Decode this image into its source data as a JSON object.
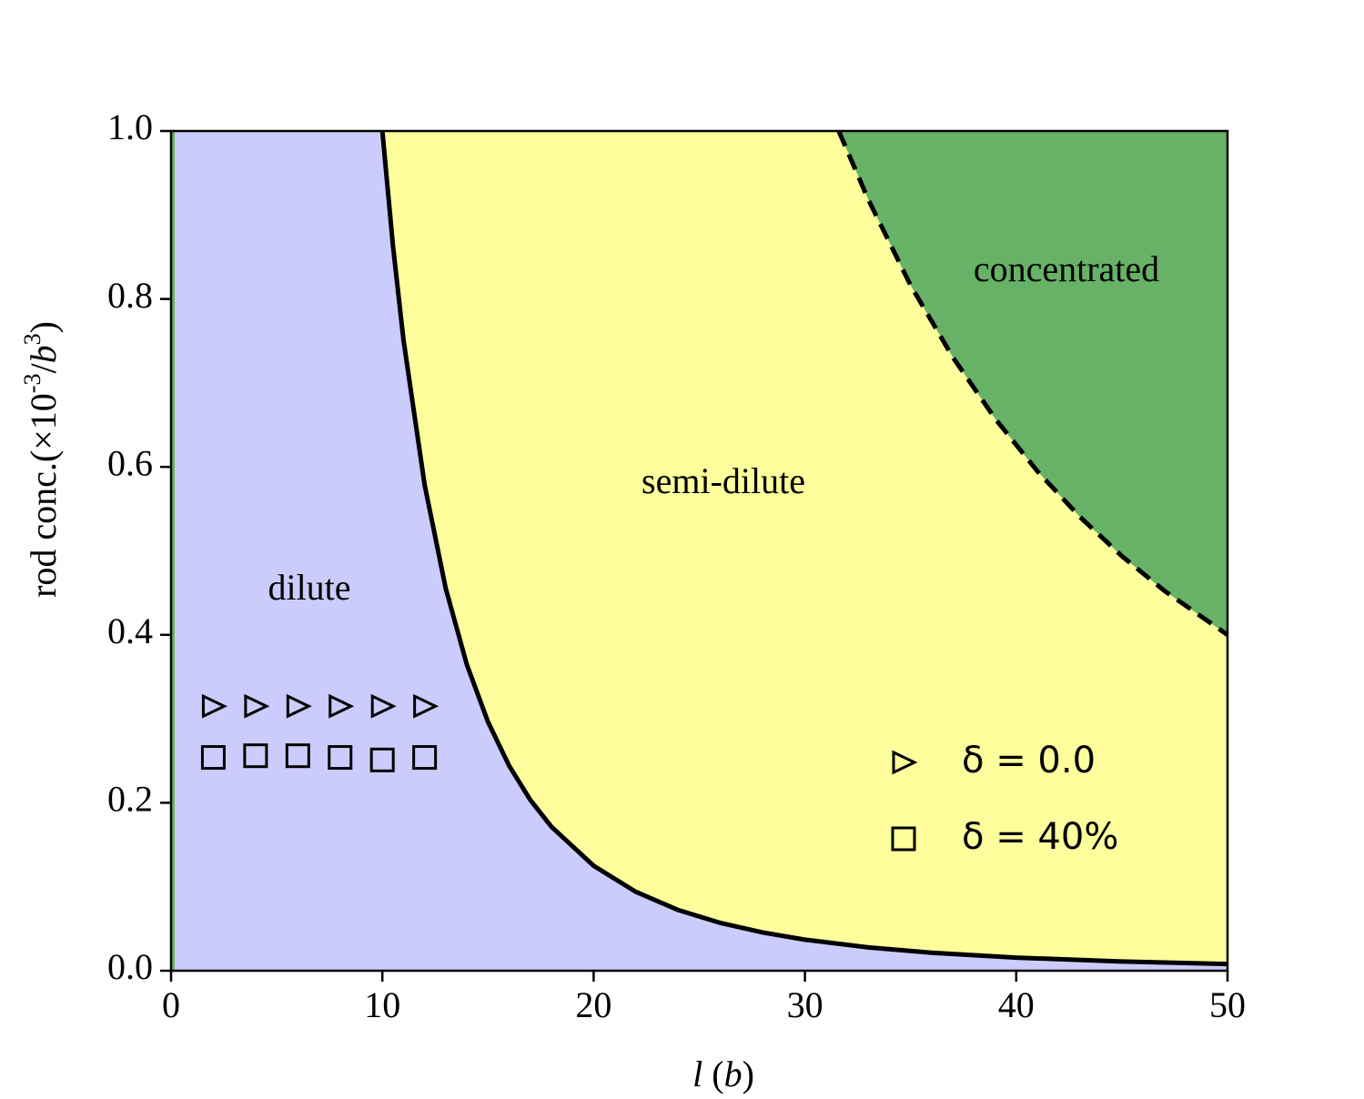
{
  "chart_data": {
    "type": "line",
    "xlabel": [
      "l",
      " (",
      "b",
      ")"
    ],
    "ylabel": [
      "rod conc.(×10",
      "-3",
      "/",
      "b",
      "3",
      ")"
    ],
    "annotations": [
      "dilute",
      "semi-dilute",
      "concentrated"
    ],
    "region_colors": [
      "#ccccfc",
      "#fefe9c",
      "#67b266"
    ],
    "xlim": [
      0,
      50
    ],
    "ylim": [
      0,
      1.0
    ],
    "xticks": [
      0,
      10,
      20,
      30,
      40,
      50
    ],
    "yticks": [
      {
        "value": 0,
        "label": "0.0"
      },
      0.2,
      0.4,
      0.6,
      0.8,
      {
        "value": 1,
        "label": "1.0"
      }
    ],
    "series": [
      {
        "color": "#000000",
        "linestyle": "solid",
        "x": [
          10,
          10.5,
          11,
          12,
          13,
          14,
          15,
          16,
          17,
          18,
          20,
          22,
          24,
          26,
          28,
          30,
          33,
          36,
          40,
          45,
          50
        ],
        "values": [
          1.0,
          0.8638,
          0.7513,
          0.5787,
          0.4552,
          0.3644,
          0.2963,
          0.2441,
          0.2035,
          0.1715,
          0.125,
          0.0939,
          0.0723,
          0.0569,
          0.0456,
          0.037,
          0.0278,
          0.0214,
          0.0156,
          0.011,
          0.008
        ]
      },
      {
        "color": "#000000",
        "linestyle": "dashed",
        "x": [
          31.6,
          33,
          35,
          37,
          39,
          41,
          43,
          45,
          47,
          50
        ],
        "values": [
          1.0,
          0.9183,
          0.8163,
          0.7305,
          0.6575,
          0.5949,
          0.5408,
          0.4938,
          0.4527,
          0.4
        ]
      },
      {
        "name": "δ = 0.0",
        "marker": "triangle",
        "color": "#000000",
        "x": [
          2,
          4,
          6,
          8,
          10,
          12
        ],
        "values": [
          0.315,
          0.315,
          0.315,
          0.315,
          0.315,
          0.315
        ]
      },
      {
        "name": "δ = 40%",
        "marker": "square",
        "color": "#000000",
        "x": [
          2,
          4,
          6,
          8,
          10,
          12
        ],
        "values": [
          0.254,
          0.256,
          0.256,
          0.254,
          0.251,
          0.254
        ]
      }
    ]
  }
}
